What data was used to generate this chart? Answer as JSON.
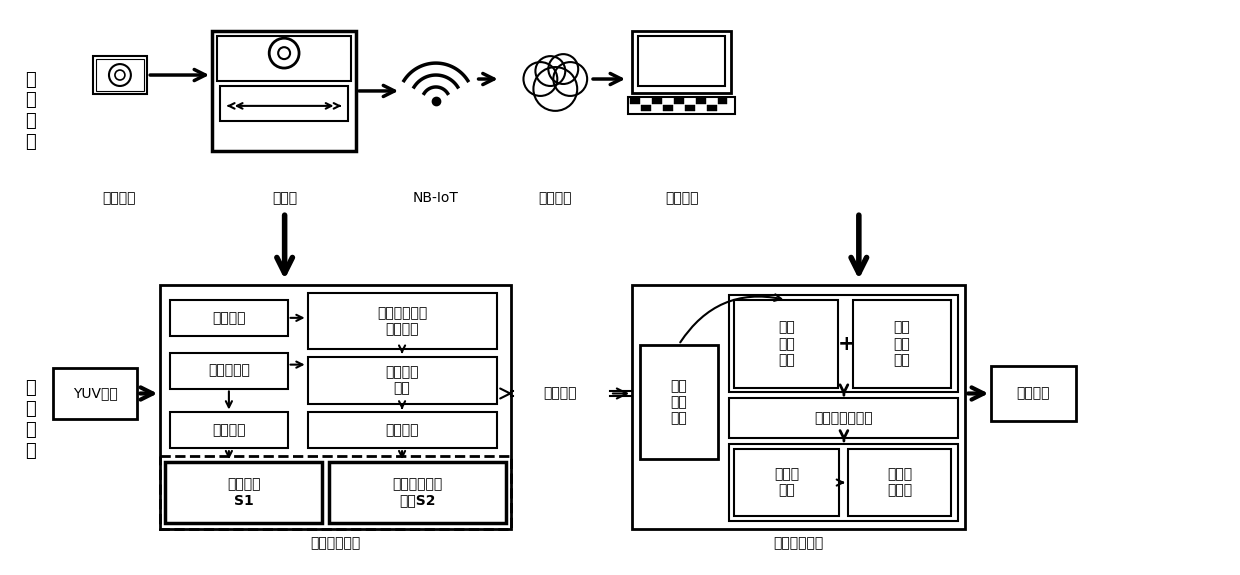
{
  "bg_color": "#ffffff",
  "line_color": "#000000",
  "hw_labels": [
    "监控采集",
    "编码端",
    "NB-IoT",
    "承载网络",
    "监控后台"
  ],
  "encoding_system_label": "混合编码系统",
  "decoding_system_label": "解码分析系统",
  "narrow_band_label": "窄带传输",
  "yuv_label": "YUV序列",
  "result_label": "结果显示",
  "mixed_recv_label": "混合\n码流\n接收",
  "face_detect_label": "人脸检测",
  "image_downsample_label": "图像下采样",
  "encode_low_label": "编码低清",
  "base_stream_label": "基本码流\nS1",
  "merge_hd_label": "融合高清人脸\n低清背景",
  "calc_diff_label": "计算人脸\n差值",
  "encode_diff_label": "编码差值",
  "face_diff_stream_label": "人脸差值信息\n码流S2",
  "base_decode_label": "基础\n码流\n解码",
  "face_diff_decode_label": "人脸\n差值\n解码",
  "base_upsample_label": "基础图像上采样",
  "frame_sync_label": "帧时序\n同步",
  "face_hd_restore_label": "人脸高\n清恢复"
}
